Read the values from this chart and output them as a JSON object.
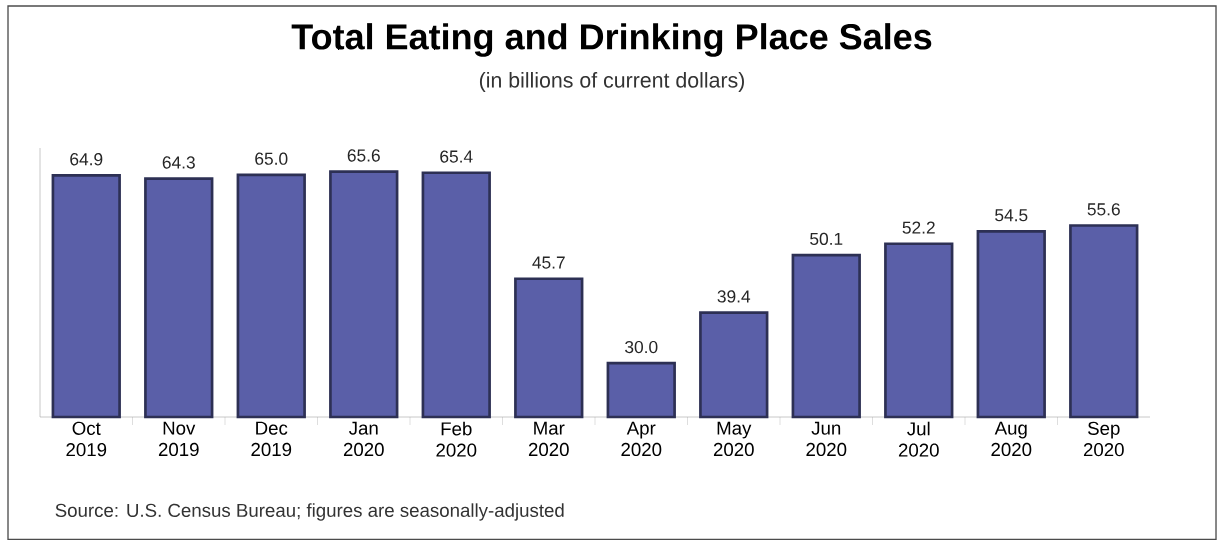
{
  "chart_data": {
    "type": "bar",
    "title": "Total Eating and Drinking Place Sales",
    "subtitle": "(in billions of current dollars)",
    "categories": [
      "Oct 2019",
      "Nov 2019",
      "Dec 2019",
      "Jan 2020",
      "Feb 2020",
      "Mar 2020",
      "Apr 2020",
      "May 2020",
      "Jun 2020",
      "Jul 2020",
      "Aug 2020",
      "Sep 2020"
    ],
    "values": [
      64.9,
      64.3,
      65.0,
      65.6,
      65.4,
      45.7,
      30.0,
      39.4,
      50.1,
      52.2,
      54.5,
      55.6
    ],
    "value_labels": [
      "64.9",
      "64.3",
      "65.0",
      "65.6",
      "65.4",
      "45.7",
      "30.0",
      "39.4",
      "50.1",
      "52.2",
      "54.5",
      "55.6"
    ],
    "color": "#5a5fa8",
    "ylim": [
      20,
      70
    ],
    "tick_labels": "x",
    "grid": false,
    "annotations": [
      "Source: U.S. Census Bureau; figures are seasonally-adjusted"
    ]
  }
}
